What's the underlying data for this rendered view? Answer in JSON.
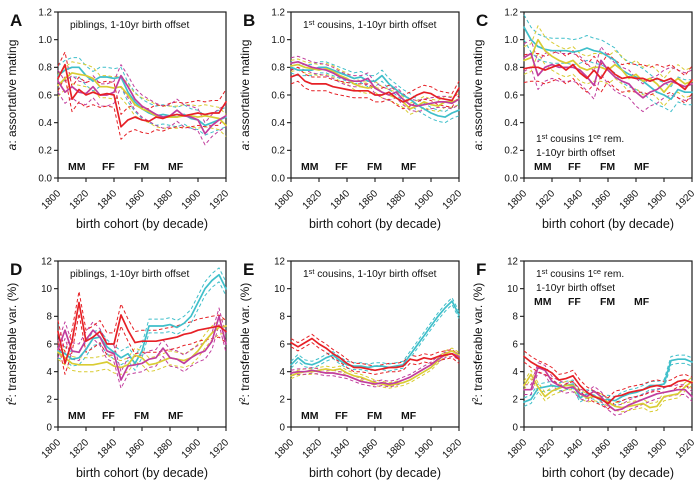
{
  "figure": {
    "background": "#ffffff",
    "axis_color": "#1c1c1c",
    "xlabel": "birth cohort (by decade)",
    "x_range": [
      1800,
      1920
    ],
    "x_ticks": [
      1800,
      1820,
      1840,
      1860,
      1880,
      1900,
      1920
    ],
    "legend": [
      {
        "key": "MM",
        "color": "#3fbfca"
      },
      {
        "key": "FF",
        "color": "#e62026"
      },
      {
        "key": "FM",
        "color": "#c13d9d"
      },
      {
        "key": "MF",
        "color": "#d9cc33"
      }
    ]
  },
  "chart_data": [
    {
      "panel": "A",
      "type": "line",
      "annotation": [
        "piblings, 1-10yr birth offset"
      ],
      "note_pos": "top",
      "legend_pos": "bottom",
      "ylabel": {
        "var": "a",
        "sup": "",
        "rest": ": assortative mating"
      },
      "ylim": [
        0,
        1.2
      ],
      "yticks": [
        0.0,
        0.2,
        0.4,
        0.6,
        0.8,
        1.0,
        1.2
      ],
      "ytick_decimals": 1,
      "x": [
        1800,
        1805,
        1810,
        1815,
        1820,
        1825,
        1830,
        1835,
        1840,
        1845,
        1850,
        1855,
        1860,
        1865,
        1870,
        1875,
        1880,
        1885,
        1890,
        1895,
        1900,
        1905,
        1910,
        1915,
        1920
      ],
      "series": [
        {
          "name": "MM",
          "ci": 0.07,
          "values": [
            0.74,
            0.78,
            0.8,
            0.8,
            0.74,
            0.7,
            0.73,
            0.73,
            0.72,
            0.73,
            0.62,
            0.55,
            0.5,
            0.47,
            0.45,
            0.46,
            0.45,
            0.44,
            0.46,
            0.43,
            0.42,
            0.38,
            0.4,
            0.42,
            0.44
          ]
        },
        {
          "name": "FF",
          "ci": 0.09,
          "values": [
            0.72,
            0.82,
            0.57,
            0.64,
            0.6,
            0.62,
            0.6,
            0.61,
            0.6,
            0.37,
            0.42,
            0.44,
            0.42,
            0.41,
            0.44,
            0.43,
            0.45,
            0.46,
            0.45,
            0.46,
            0.47,
            0.46,
            0.47,
            0.47,
            0.55
          ]
        },
        {
          "name": "FM",
          "ci": 0.08,
          "values": [
            0.7,
            0.62,
            0.66,
            0.62,
            0.61,
            0.66,
            0.6,
            0.6,
            0.62,
            0.74,
            0.66,
            0.57,
            0.52,
            0.49,
            0.46,
            0.44,
            0.45,
            0.49,
            0.45,
            0.44,
            0.42,
            0.32,
            0.38,
            0.42,
            0.45
          ]
        },
        {
          "name": "MF",
          "ci": 0.08,
          "values": [
            0.67,
            0.72,
            0.76,
            0.75,
            0.74,
            0.72,
            0.66,
            0.66,
            0.65,
            0.66,
            0.6,
            0.53,
            0.5,
            0.48,
            0.45,
            0.44,
            0.44,
            0.44,
            0.45,
            0.45,
            0.44,
            0.45,
            0.44,
            0.43,
            0.38
          ]
        }
      ]
    },
    {
      "panel": "B",
      "type": "line",
      "annotation": [
        "1st cousins, 1-10yr birth offset"
      ],
      "note_pos": "top",
      "legend_pos": "bottom",
      "ylabel": {
        "var": "a",
        "sup": "",
        "rest": ": assortative mating"
      },
      "ylim": [
        0,
        1.2
      ],
      "yticks": [
        0.0,
        0.2,
        0.4,
        0.6,
        0.8,
        1.0,
        1.2
      ],
      "ytick_decimals": 1,
      "x": [
        1800,
        1805,
        1810,
        1815,
        1820,
        1825,
        1830,
        1835,
        1840,
        1845,
        1850,
        1855,
        1860,
        1865,
        1870,
        1875,
        1880,
        1885,
        1890,
        1895,
        1900,
        1905,
        1910,
        1915,
        1920
      ],
      "series": [
        {
          "name": "MM",
          "ci": 0.04,
          "values": [
            0.8,
            0.78,
            0.78,
            0.78,
            0.8,
            0.8,
            0.78,
            0.76,
            0.74,
            0.72,
            0.73,
            0.7,
            0.7,
            0.74,
            0.68,
            0.64,
            0.6,
            0.57,
            0.53,
            0.5,
            0.47,
            0.45,
            0.44,
            0.47,
            0.49
          ]
        },
        {
          "name": "FF",
          "ci": 0.05,
          "values": [
            0.73,
            0.75,
            0.7,
            0.68,
            0.68,
            0.68,
            0.66,
            0.65,
            0.64,
            0.63,
            0.63,
            0.63,
            0.6,
            0.6,
            0.62,
            0.58,
            0.55,
            0.57,
            0.6,
            0.62,
            0.61,
            0.58,
            0.57,
            0.56,
            0.65
          ]
        },
        {
          "name": "FM",
          "ci": 0.04,
          "values": [
            0.83,
            0.84,
            0.82,
            0.8,
            0.79,
            0.78,
            0.76,
            0.73,
            0.71,
            0.7,
            0.7,
            0.72,
            0.65,
            0.62,
            0.6,
            0.62,
            0.57,
            0.53,
            0.52,
            0.53,
            0.54,
            0.55,
            0.55,
            0.54,
            0.57
          ]
        },
        {
          "name": "MF",
          "ci": 0.04,
          "values": [
            0.81,
            0.82,
            0.8,
            0.79,
            0.78,
            0.79,
            0.77,
            0.74,
            0.72,
            0.68,
            0.66,
            0.65,
            0.66,
            0.62,
            0.6,
            0.58,
            0.55,
            0.5,
            0.52,
            0.55,
            0.53,
            0.52,
            0.55,
            0.55,
            0.57
          ]
        }
      ]
    },
    {
      "panel": "C",
      "type": "line",
      "annotation": [
        "1st cousins 1ce rem.",
        "1-10yr birth offset"
      ],
      "note_pos": "bottom",
      "legend_pos": "bottom",
      "ylabel": {
        "var": "a",
        "sup": "",
        "rest": ": assortative mating"
      },
      "ylim": [
        0,
        1.2
      ],
      "yticks": [
        0.0,
        0.2,
        0.4,
        0.6,
        0.8,
        1.0,
        1.2
      ],
      "ytick_decimals": 1,
      "x": [
        1800,
        1805,
        1810,
        1815,
        1820,
        1825,
        1830,
        1835,
        1840,
        1845,
        1850,
        1855,
        1860,
        1865,
        1870,
        1875,
        1880,
        1885,
        1890,
        1895,
        1900,
        1905,
        1910,
        1915,
        1920
      ],
      "series": [
        {
          "name": "MM",
          "ci": 0.09,
          "values": [
            1.09,
            1.0,
            0.95,
            0.93,
            0.92,
            0.92,
            0.92,
            0.91,
            0.92,
            0.94,
            0.92,
            0.91,
            0.88,
            0.85,
            0.78,
            0.75,
            0.73,
            0.7,
            0.66,
            0.62,
            0.6,
            0.57,
            0.64,
            0.62,
            0.62
          ]
        },
        {
          "name": "FF",
          "ci": 0.1,
          "values": [
            0.79,
            0.8,
            0.8,
            0.78,
            0.8,
            0.82,
            0.78,
            0.82,
            0.76,
            0.72,
            0.78,
            0.72,
            0.8,
            0.75,
            0.72,
            0.73,
            0.72,
            0.72,
            0.7,
            0.72,
            0.7,
            0.72,
            0.68,
            0.64,
            0.71
          ]
        },
        {
          "name": "FM",
          "ci": 0.1,
          "values": [
            0.87,
            0.9,
            0.74,
            0.8,
            0.82,
            0.8,
            0.8,
            0.8,
            0.78,
            0.73,
            0.67,
            0.85,
            0.78,
            0.73,
            0.7,
            0.68,
            0.62,
            0.58,
            0.62,
            0.64,
            0.68,
            0.7,
            0.68,
            0.66,
            0.68
          ]
        },
        {
          "name": "MF",
          "ci": 0.1,
          "values": [
            0.85,
            0.87,
            1.0,
            0.92,
            0.88,
            0.85,
            0.83,
            0.85,
            0.8,
            0.78,
            0.8,
            0.8,
            0.78,
            0.82,
            0.78,
            0.72,
            0.75,
            0.7,
            0.72,
            0.68,
            0.62,
            0.68,
            0.72,
            0.68,
            0.7
          ]
        }
      ]
    },
    {
      "panel": "D",
      "type": "line",
      "annotation": [
        "piblings, 1-10yr birth offset"
      ],
      "note_pos": "top",
      "legend_pos": "bottom",
      "ylabel": {
        "var": "t",
        "sup": "2",
        "rest": ": transferable var. (%)"
      },
      "ylim": [
        0,
        12
      ],
      "yticks": [
        0,
        2,
        4,
        6,
        8,
        10,
        12
      ],
      "ytick_decimals": 0,
      "x": [
        1800,
        1805,
        1810,
        1815,
        1820,
        1825,
        1830,
        1835,
        1840,
        1845,
        1850,
        1855,
        1860,
        1865,
        1870,
        1875,
        1880,
        1885,
        1890,
        1895,
        1900,
        1905,
        1910,
        1915,
        1920
      ],
      "series": [
        {
          "name": "MM",
          "ci": 0.5,
          "values": [
            5.5,
            5.3,
            4.9,
            5.0,
            5.6,
            6.4,
            6.5,
            5.8,
            5.4,
            5.0,
            5.3,
            4.6,
            5.5,
            7.3,
            7.3,
            7.3,
            7.4,
            7.2,
            7.5,
            8.0,
            9.0,
            10.0,
            10.6,
            11.0,
            10.0
          ]
        },
        {
          "name": "FF",
          "ci": 0.8,
          "values": [
            6.9,
            4.6,
            6.2,
            9.0,
            6.2,
            6.5,
            6.9,
            6.0,
            6.0,
            8.1,
            7.0,
            6.1,
            6.2,
            6.2,
            6.2,
            6.3,
            6.4,
            6.5,
            6.7,
            6.8,
            7.0,
            7.1,
            7.2,
            7.3,
            6.9
          ]
        },
        {
          "name": "FM",
          "ci": 0.6,
          "values": [
            5.6,
            7.0,
            5.5,
            5.4,
            6.3,
            7.0,
            6.5,
            5.5,
            5.3,
            3.4,
            4.4,
            4.5,
            4.6,
            4.9,
            5.0,
            5.7,
            5.0,
            4.9,
            4.6,
            5.0,
            5.3,
            5.5,
            6.2,
            8.0,
            6.0
          ]
        },
        {
          "name": "MF",
          "ci": 0.5,
          "values": [
            5.4,
            5.0,
            4.6,
            4.5,
            4.5,
            4.5,
            4.6,
            4.7,
            4.4,
            4.3,
            4.5,
            5.2,
            5.0,
            4.5,
            4.6,
            4.8,
            5.0,
            4.9,
            4.8,
            5.0,
            5.5,
            6.2,
            6.8,
            7.2,
            7.3
          ]
        }
      ]
    },
    {
      "panel": "E",
      "type": "line",
      "annotation": [
        "1st cousins, 1-10yr birth offset"
      ],
      "note_pos": "top",
      "legend_pos": "bottom",
      "ylabel": {
        "var": "t",
        "sup": "2",
        "rest": ": transferable var. (%)"
      },
      "ylim": [
        0,
        12
      ],
      "yticks": [
        0,
        2,
        4,
        6,
        8,
        10,
        12
      ],
      "ytick_decimals": 0,
      "x": [
        1800,
        1805,
        1810,
        1815,
        1820,
        1825,
        1830,
        1835,
        1840,
        1845,
        1850,
        1855,
        1860,
        1865,
        1870,
        1875,
        1880,
        1885,
        1890,
        1895,
        1900,
        1905,
        1910,
        1915,
        1920
      ],
      "series": [
        {
          "name": "MM",
          "ci": 0.25,
          "values": [
            4.5,
            5.0,
            4.6,
            4.5,
            4.7,
            5.0,
            5.2,
            4.8,
            4.5,
            4.4,
            4.4,
            4.3,
            4.4,
            4.4,
            4.3,
            4.4,
            4.5,
            5.2,
            5.9,
            6.6,
            7.3,
            8.0,
            8.6,
            9.1,
            8.1
          ]
        },
        {
          "name": "FF",
          "ci": 0.3,
          "values": [
            6.1,
            5.8,
            6.1,
            6.4,
            6.0,
            5.7,
            5.3,
            5.0,
            4.6,
            4.3,
            4.3,
            4.2,
            4.1,
            4.2,
            4.3,
            4.3,
            4.4,
            4.9,
            4.8,
            5.0,
            4.9,
            5.1,
            5.2,
            5.3,
            4.9
          ]
        },
        {
          "name": "FM",
          "ci": 0.2,
          "values": [
            3.9,
            4.0,
            4.0,
            4.1,
            4.0,
            3.9,
            3.9,
            3.8,
            3.7,
            3.5,
            3.3,
            3.2,
            3.1,
            3.2,
            3.1,
            3.2,
            3.4,
            3.6,
            3.9,
            4.2,
            4.5,
            4.9,
            5.2,
            5.3,
            5.1
          ]
        },
        {
          "name": "MF",
          "ci": 0.2,
          "values": [
            3.7,
            3.9,
            4.0,
            4.0,
            4.1,
            4.2,
            4.1,
            4.2,
            3.9,
            3.7,
            3.6,
            3.4,
            3.2,
            3.1,
            3.0,
            3.1,
            3.2,
            3.4,
            3.7,
            4.0,
            4.3,
            4.8,
            5.3,
            5.5,
            5.2
          ]
        }
      ]
    },
    {
      "panel": "F",
      "type": "line",
      "annotation": [
        "1st cousins 1ce rem.",
        "1-10yr birth offset"
      ],
      "note_pos": "top",
      "legend_pos": "top",
      "ylabel": {
        "var": "t",
        "sup": "2",
        "rest": ": transferable var. (%)"
      },
      "ylim": [
        0,
        12
      ],
      "yticks": [
        0,
        2,
        4,
        6,
        8,
        10,
        12
      ],
      "ytick_decimals": 0,
      "x": [
        1800,
        1805,
        1810,
        1815,
        1820,
        1825,
        1830,
        1835,
        1840,
        1845,
        1850,
        1855,
        1860,
        1865,
        1870,
        1875,
        1880,
        1885,
        1890,
        1895,
        1900,
        1905,
        1910,
        1915,
        1920
      ],
      "series": [
        {
          "name": "MM",
          "ci": 0.3,
          "values": [
            1.8,
            2.0,
            2.8,
            2.9,
            3.0,
            2.9,
            3.0,
            3.1,
            2.1,
            2.4,
            2.3,
            1.9,
            2.0,
            1.9,
            2.2,
            2.4,
            2.5,
            2.7,
            3.0,
            3.0,
            3.1,
            4.8,
            4.9,
            4.9,
            4.7
          ]
        },
        {
          "name": "FF",
          "ci": 0.4,
          "values": [
            5.1,
            4.7,
            4.4,
            4.2,
            3.9,
            3.4,
            3.5,
            3.7,
            3.0,
            2.5,
            2.2,
            2.0,
            1.7,
            2.2,
            2.3,
            2.5,
            2.6,
            2.7,
            2.9,
            3.0,
            2.9,
            3.0,
            3.3,
            3.4,
            3.2
          ]
        },
        {
          "name": "FM",
          "ci": 0.35,
          "values": [
            2.7,
            2.7,
            4.3,
            4.1,
            3.3,
            3.0,
            2.8,
            2.9,
            2.4,
            2.2,
            2.6,
            2.2,
            1.6,
            1.2,
            1.3,
            1.6,
            1.8,
            2.0,
            2.2,
            2.4,
            2.5,
            2.6,
            2.7,
            2.7,
            2.2
          ]
        },
        {
          "name": "MF",
          "ci": 0.3,
          "values": [
            3.0,
            3.8,
            2.9,
            2.2,
            2.6,
            2.8,
            3.0,
            3.0,
            2.4,
            2.1,
            2.2,
            2.1,
            1.8,
            1.5,
            1.4,
            1.5,
            1.6,
            1.7,
            1.4,
            1.5,
            2.2,
            2.3,
            2.4,
            2.9,
            3.3
          ]
        }
      ]
    }
  ]
}
